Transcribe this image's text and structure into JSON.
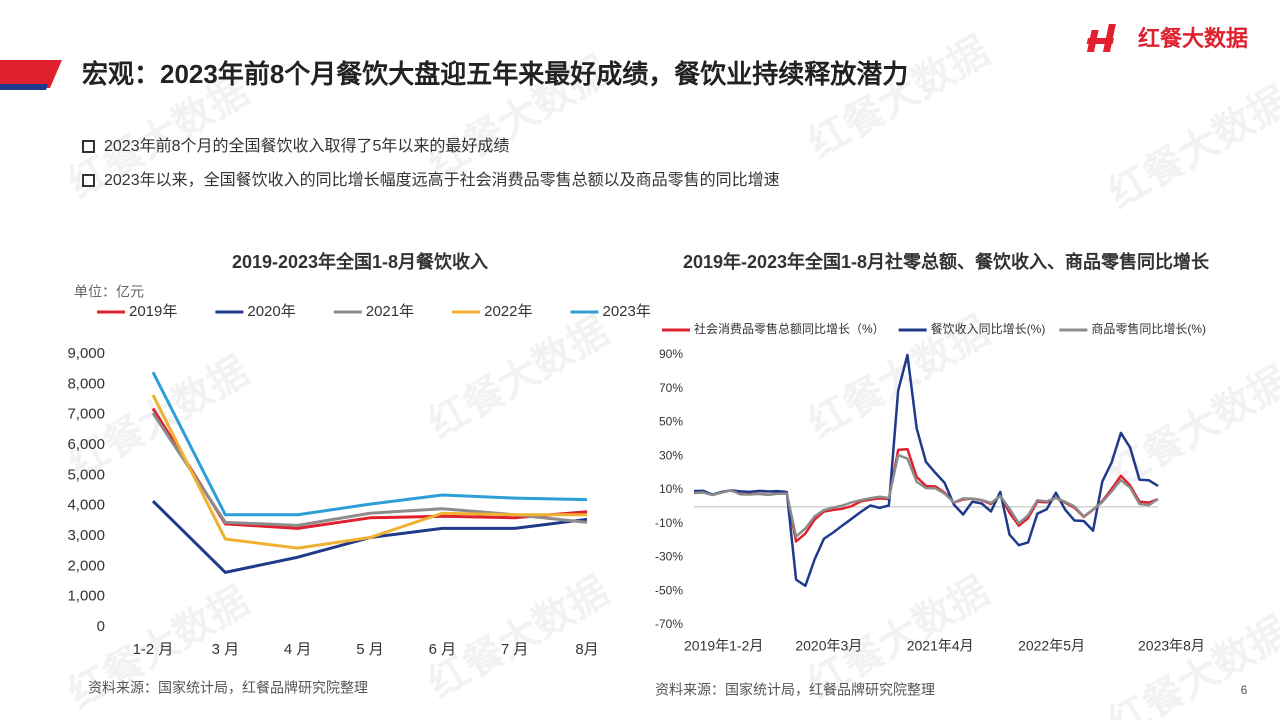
{
  "title": "宏观：2023年前8个月餐饮大盘迎五年来最好成绩，餐饮业持续释放潜力",
  "logo": "红餐大数据",
  "watermark": "红餐大数据",
  "bullets": [
    "2023年前8个月的全国餐饮收入取得了5年以来的最好成绩",
    "2023年以来，全国餐饮收入的同比增长幅度远高于社会消费品零售总额以及商品零售的同比增速"
  ],
  "page_number": 6,
  "chart_data": [
    {
      "type": "line",
      "title": "2019-2023年全国1-8月餐饮收入",
      "unit": "单位：亿元",
      "source": "资料来源：国家统计局，红餐品牌研究院整理",
      "categories": [
        "1-2 月",
        "3 月",
        "4 月",
        "5 月",
        "6 月",
        "7 月",
        "8月"
      ],
      "ylim": [
        0,
        9000
      ],
      "yticks": [
        0,
        {
          "value": 1000,
          "label": "1,000"
        },
        {
          "value": 2000,
          "label": "2,000"
        },
        {
          "value": 3000,
          "label": "3,000"
        },
        {
          "value": 4000,
          "label": "4,000"
        },
        {
          "value": 5000,
          "label": "5,000"
        },
        {
          "value": 6000,
          "label": "6,000"
        },
        {
          "value": 7000,
          "label": "7,000"
        },
        {
          "value": 8000,
          "label": "8,000"
        },
        {
          "value": 9000,
          "label": "9,000"
        }
      ],
      "series": [
        {
          "name": "2019年",
          "color": "#e0202f",
          "values": [
            7200,
            3400,
            3250,
            3600,
            3650,
            3600,
            3800
          ]
        },
        {
          "name": "2020年",
          "color": "#1f3a8a",
          "values": [
            4150,
            1800,
            2300,
            2950,
            3250,
            3250,
            3550
          ]
        },
        {
          "name": "2021年",
          "color": "#8c8c8c",
          "values": [
            7050,
            3450,
            3350,
            3750,
            3900,
            3700,
            3450
          ]
        },
        {
          "name": "2022年",
          "color": "#f0b030",
          "values": [
            7650,
            2900,
            2600,
            2950,
            3750,
            3700,
            3700
          ]
        },
        {
          "name": "2023年",
          "color": "#2e9fd6",
          "values": [
            8400,
            3700,
            3700,
            4050,
            4350,
            4250,
            4200
          ]
        }
      ]
    },
    {
      "type": "line",
      "title": "2019年-2023年全国1-8月社零总额、餐饮收入、商品零售同比增长",
      "source": "资料来源：国家统计局，红餐品牌研究院整理",
      "categories": [
        "2019年1-2月",
        null,
        null,
        null,
        null,
        null,
        null,
        null,
        null,
        null,
        null,
        null,
        "2020年3月",
        null,
        null,
        null,
        null,
        null,
        null,
        null,
        null,
        null,
        null,
        null,
        "2021年4月",
        null,
        null,
        null,
        null,
        null,
        null,
        null,
        null,
        null,
        null,
        null,
        "2022年5月",
        null,
        null,
        null,
        null,
        null,
        null,
        null,
        null,
        null,
        null,
        null,
        null,
        null,
        "2023年8月"
      ],
      "ylim": [
        -70,
        90
      ],
      "yticks": [
        {
          "value": -70,
          "label": "-70%"
        },
        {
          "value": -50,
          "label": "-50%"
        },
        {
          "value": -30,
          "label": "-30%"
        },
        {
          "value": -10,
          "label": "-10%"
        },
        {
          "value": 10,
          "label": "10%"
        },
        {
          "value": 30,
          "label": "30%"
        },
        {
          "value": 50,
          "label": "50%"
        },
        {
          "value": 70,
          "label": "70%"
        },
        {
          "value": 90,
          "label": "90%"
        }
      ],
      "series": [
        {
          "name": "社会消费品零售总额同比增长（%）",
          "color": "#e0202f",
          "values": [
            8.2,
            8.7,
            7.2,
            8.6,
            9.8,
            7.6,
            7.5,
            7.8,
            7.2,
            8.0,
            8.0,
            -20.5,
            -15.8,
            -7.5,
            -2.8,
            -1.8,
            -1.1,
            0.5,
            3.3,
            4.3,
            5.0,
            4.6,
            33.8,
            34.2,
            17.7,
            12.4,
            12.1,
            8.5,
            2.5,
            4.4,
            4.9,
            3.9,
            1.7,
            6.7,
            -3.5,
            -11.1,
            -6.7,
            3.1,
            2.7,
            5.4,
            2.5,
            -0.5,
            -5.9,
            -1.8,
            3.5,
            10.6,
            18.4,
            12.7,
            3.1,
            2.5,
            4.6
          ]
        },
        {
          "name": "餐饮收入同比增长(%)",
          "color": "#1f3a8a",
          "values": [
            9.4,
            9.5,
            7.2,
            8.9,
            9.8,
            9.2,
            8.9,
            9.5,
            9.1,
            9.3,
            8.8,
            -43.1,
            -46.8,
            -31.1,
            -18.9,
            -15.2,
            -11.0,
            -7.0,
            -2.9,
            0.8,
            -0.6,
            0.8,
            68.9,
            90,
            46.4,
            26.6,
            20.2,
            14.3,
            1.4,
            -4.5,
            3.1,
            2.0,
            -2.7,
            8.9,
            -16.4,
            -22.7,
            -21.1,
            -4.0,
            -1.5,
            8.4,
            -1.7,
            -8.1,
            -8.4,
            -14.1,
            15.0,
            26.3,
            43.8,
            35.1,
            16.1,
            15.8,
            12.4
          ]
        },
        {
          "name": "商品零售同比增长(%)",
          "color": "#8c8c8c",
          "values": [
            8.2,
            8.5,
            7.0,
            8.5,
            9.8,
            7.4,
            7.3,
            7.7,
            7.1,
            7.8,
            7.9,
            -17.6,
            -12.8,
            -5.6,
            -1.9,
            -0.4,
            0.8,
            2.7,
            4.0,
            5.1,
            6.0,
            5.3,
            30.7,
            28.6,
            14.8,
            11.1,
            11.0,
            7.9,
            2.6,
            5.0,
            4.9,
            4.1,
            2.3,
            6.5,
            -1.1,
            -9.7,
            -5.0,
            3.9,
            3.3,
            5.3,
            3.0,
            0.2,
            -5.6,
            -1.6,
            2.9,
            9.1,
            15.9,
            11.3,
            1.7,
            1.0,
            4.6
          ]
        }
      ]
    }
  ]
}
